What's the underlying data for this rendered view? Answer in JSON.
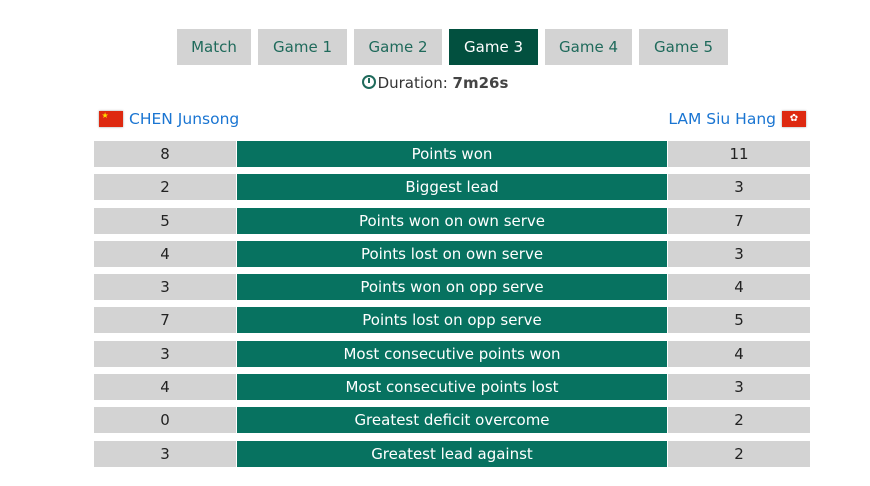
{
  "tabs": [
    "Match",
    "Game 1",
    "Game 2",
    "Game 3",
    "Game 4",
    "Game 5"
  ],
  "active_tab": "Game 3",
  "duration": {
    "label": "Duration:",
    "value": "7m26s"
  },
  "players": {
    "left": {
      "name": "CHEN Junsong",
      "flag": "china-flag"
    },
    "right": {
      "name": "LAM Siu Hang",
      "flag": "hong-kong-flag"
    }
  },
  "stats": [
    {
      "label": "Points won",
      "left": "8",
      "right": "11"
    },
    {
      "label": "Biggest lead",
      "left": "2",
      "right": "3"
    },
    {
      "label": "Points won on own serve",
      "left": "5",
      "right": "7"
    },
    {
      "label": "Points lost on own serve",
      "left": "4",
      "right": "3"
    },
    {
      "label": "Points won on opp serve",
      "left": "3",
      "right": "4"
    },
    {
      "label": "Points lost on opp serve",
      "left": "7",
      "right": "5"
    },
    {
      "label": "Most consecutive points won",
      "left": "3",
      "right": "4"
    },
    {
      "label": "Most consecutive points lost",
      "left": "4",
      "right": "3"
    },
    {
      "label": "Greatest deficit overcome",
      "left": "0",
      "right": "2"
    },
    {
      "label": "Greatest lead against",
      "left": "3",
      "right": "2"
    }
  ],
  "colors": {
    "accent": "#077260",
    "active_tab": "#02503f",
    "name": "#1a75d2",
    "cell": "#d3d3d3"
  }
}
